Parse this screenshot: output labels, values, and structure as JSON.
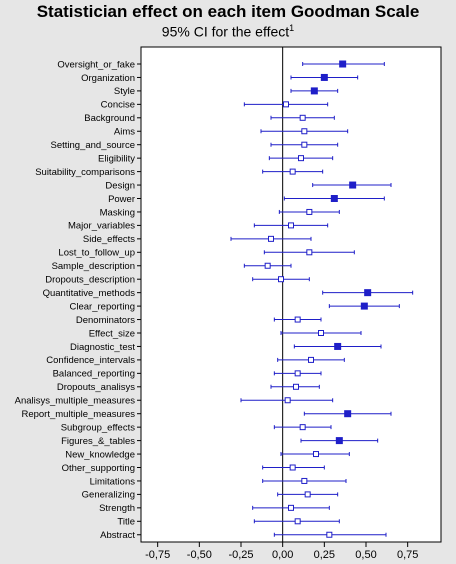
{
  "chart_data": {
    "type": "forest",
    "title": "Statistician effect on each item Goodman Scale",
    "subtitle": "95% CI for the effect",
    "subtitle_marker": "1",
    "xlim": [
      -0.85,
      0.95
    ],
    "xticks": [
      -0.75,
      -0.5,
      -0.25,
      0.0,
      0.25,
      0.5,
      0.75
    ],
    "xtick_labels": [
      "-0,75",
      "-0,50",
      "-0,25",
      "0,00",
      "0,25",
      "0,50",
      "0,75"
    ],
    "reference_line": 0,
    "marker_color": "#1f1fc8",
    "items": [
      {
        "label": "Oversight_or_fake",
        "est": 0.36,
        "lo": 0.12,
        "hi": 0.61,
        "filled": true
      },
      {
        "label": "Organization",
        "est": 0.25,
        "lo": 0.05,
        "hi": 0.45,
        "filled": true
      },
      {
        "label": "Style",
        "est": 0.19,
        "lo": 0.05,
        "hi": 0.33,
        "filled": true
      },
      {
        "label": "Concise",
        "est": 0.02,
        "lo": -0.23,
        "hi": 0.27,
        "filled": false
      },
      {
        "label": "Background",
        "est": 0.12,
        "lo": -0.07,
        "hi": 0.31,
        "filled": false
      },
      {
        "label": "Aims",
        "est": 0.13,
        "lo": -0.13,
        "hi": 0.39,
        "filled": false
      },
      {
        "label": "Setting_and_source",
        "est": 0.13,
        "lo": -0.07,
        "hi": 0.33,
        "filled": false
      },
      {
        "label": "Eligibility",
        "est": 0.11,
        "lo": -0.08,
        "hi": 0.3,
        "filled": false
      },
      {
        "label": "Suitability_comparisons",
        "est": 0.06,
        "lo": -0.12,
        "hi": 0.24,
        "filled": false
      },
      {
        "label": "Design",
        "est": 0.42,
        "lo": 0.18,
        "hi": 0.65,
        "filled": true
      },
      {
        "label": "Power",
        "est": 0.31,
        "lo": 0.01,
        "hi": 0.61,
        "filled": true
      },
      {
        "label": "Masking",
        "est": 0.16,
        "lo": -0.02,
        "hi": 0.34,
        "filled": false
      },
      {
        "label": "Major_variables",
        "est": 0.05,
        "lo": -0.17,
        "hi": 0.27,
        "filled": false
      },
      {
        "label": "Side_effects",
        "est": -0.07,
        "lo": -0.31,
        "hi": 0.17,
        "filled": false
      },
      {
        "label": "Lost_to_follow_up",
        "est": 0.16,
        "lo": -0.11,
        "hi": 0.43,
        "filled": false
      },
      {
        "label": "Sample_description",
        "est": -0.09,
        "lo": -0.23,
        "hi": 0.05,
        "filled": false
      },
      {
        "label": "Dropouts_description",
        "est": -0.01,
        "lo": -0.18,
        "hi": 0.16,
        "filled": false
      },
      {
        "label": "Quantitative_methods",
        "est": 0.51,
        "lo": 0.24,
        "hi": 0.78,
        "filled": true
      },
      {
        "label": "Clear_reporting",
        "est": 0.49,
        "lo": 0.28,
        "hi": 0.7,
        "filled": true
      },
      {
        "label": "Denominators",
        "est": 0.09,
        "lo": -0.05,
        "hi": 0.23,
        "filled": false
      },
      {
        "label": "Effect_size",
        "est": 0.23,
        "lo": -0.01,
        "hi": 0.47,
        "filled": false
      },
      {
        "label": "Diagnostic_test",
        "est": 0.33,
        "lo": 0.07,
        "hi": 0.59,
        "filled": true
      },
      {
        "label": "Confidence_intervals",
        "est": 0.17,
        "lo": -0.03,
        "hi": 0.37,
        "filled": false
      },
      {
        "label": "Balanced_reporting",
        "est": 0.09,
        "lo": -0.05,
        "hi": 0.23,
        "filled": false
      },
      {
        "label": "Dropouts_analisys",
        "est": 0.08,
        "lo": -0.07,
        "hi": 0.22,
        "filled": false
      },
      {
        "label": "Analisys_multiple_measures",
        "est": 0.03,
        "lo": -0.25,
        "hi": 0.3,
        "filled": false
      },
      {
        "label": "Report_multiple_measures",
        "est": 0.39,
        "lo": 0.13,
        "hi": 0.65,
        "filled": true
      },
      {
        "label": "Subgroup_effects",
        "est": 0.12,
        "lo": -0.05,
        "hi": 0.29,
        "filled": false
      },
      {
        "label": "Figures_&_tables",
        "est": 0.34,
        "lo": 0.11,
        "hi": 0.57,
        "filled": true
      },
      {
        "label": "New_knowledge",
        "est": 0.2,
        "lo": -0.01,
        "hi": 0.4,
        "filled": false
      },
      {
        "label": "Other_supporting",
        "est": 0.06,
        "lo": -0.12,
        "hi": 0.25,
        "filled": false
      },
      {
        "label": "Limitations",
        "est": 0.13,
        "lo": -0.12,
        "hi": 0.38,
        "filled": false
      },
      {
        "label": "Generalizing",
        "est": 0.15,
        "lo": -0.03,
        "hi": 0.33,
        "filled": false
      },
      {
        "label": "Strength",
        "est": 0.05,
        "lo": -0.18,
        "hi": 0.28,
        "filled": false
      },
      {
        "label": "Title",
        "est": 0.09,
        "lo": -0.17,
        "hi": 0.34,
        "filled": false
      },
      {
        "label": "Abstract",
        "est": 0.28,
        "lo": -0.05,
        "hi": 0.62,
        "filled": false
      }
    ]
  }
}
